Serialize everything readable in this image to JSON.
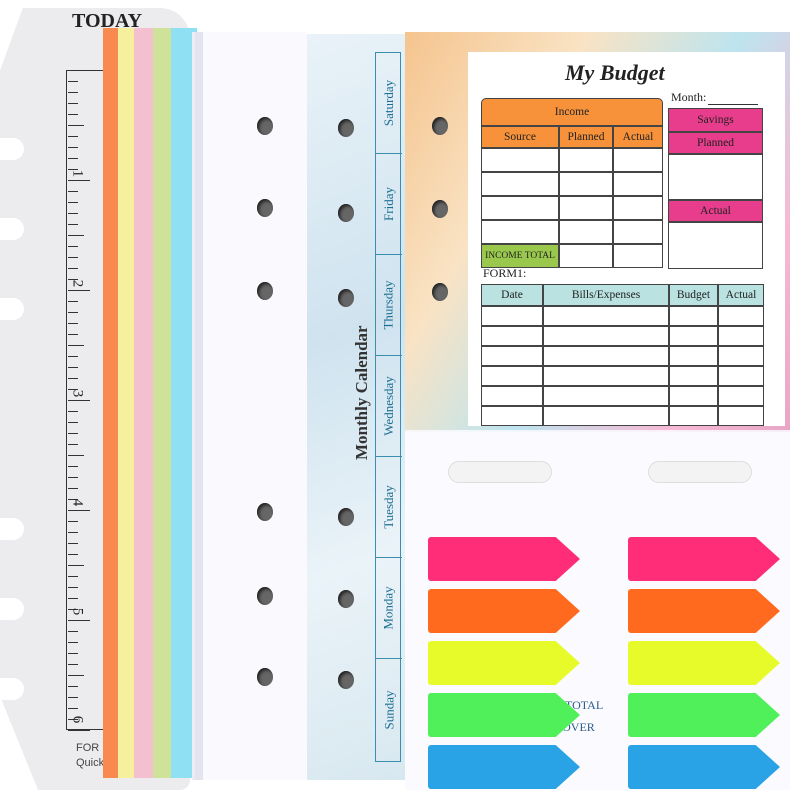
{
  "ruler": {
    "title": "TODAY",
    "numbers": [
      "1",
      "2",
      "3",
      "4",
      "5",
      "6"
    ],
    "footer_line1": "FOR",
    "footer_line2": "Quick"
  },
  "dividers": {
    "colors": [
      "#f98a4f",
      "#f6ef9e",
      "#f4bfcf",
      "#cfe29a",
      "#8fe0f3"
    ]
  },
  "calendar": {
    "title": "Monthly Calendar",
    "days": [
      "Saturday",
      "Friday",
      "Thursday",
      "Wednesday",
      "Tuesday",
      "Monday",
      "Sunday"
    ],
    "accent": "#3a8fb0"
  },
  "budget": {
    "title": "My Budget",
    "month_label": "Month:",
    "income": {
      "header": "Income",
      "columns": [
        "Source",
        "Planned",
        "Actual"
      ],
      "total": "INCOME TOTAL",
      "color": "#f7923a"
    },
    "savings": {
      "header": "Savings",
      "planned": "Planned",
      "actual": "Actual",
      "color": "#e83d8c"
    },
    "form_label": "FORM1:",
    "form_columns": [
      "Date",
      "Bills/Expenses",
      "Budget",
      "Actual"
    ],
    "form_color": "#b9e2e0",
    "total_color": "#9ac84c"
  },
  "sticky_tabs": {
    "colors": [
      "#ff2d78",
      "#ff6a1f",
      "#e8fb2a",
      "#4ff05a",
      "#2aa3e6"
    ],
    "background_text": [
      "LL TOTAL",
      "TOVER"
    ]
  }
}
